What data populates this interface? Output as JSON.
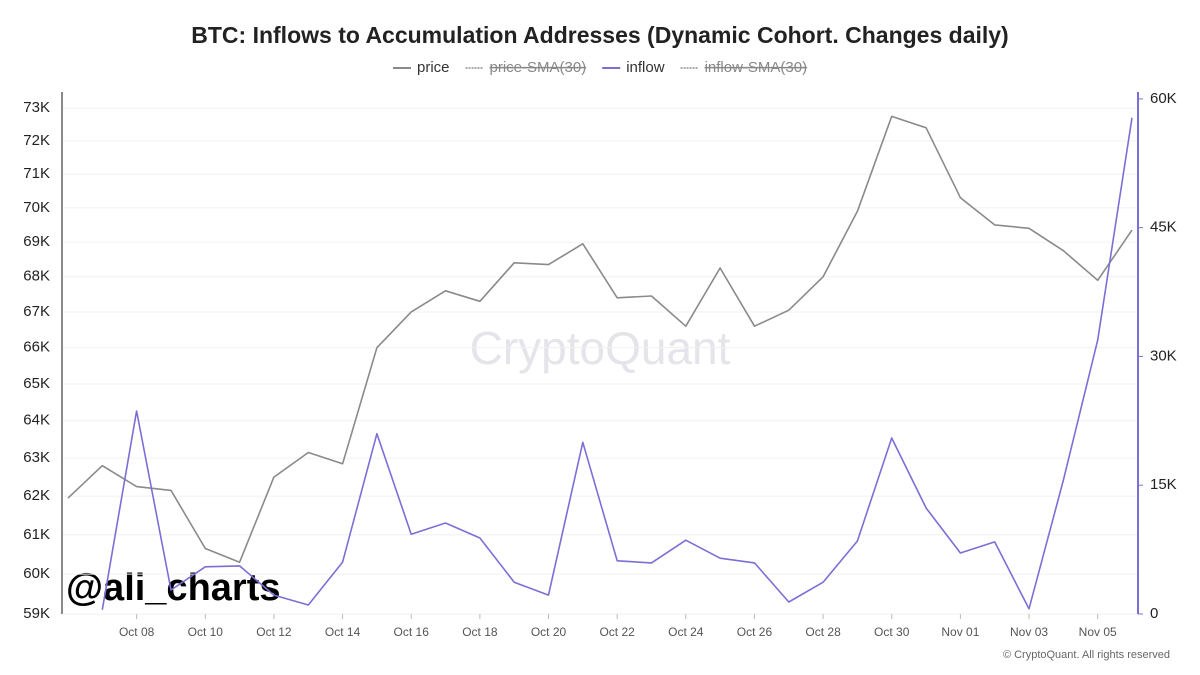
{
  "chart_data": {
    "type": "line",
    "title": "BTC: Inflows to Accumulation Addresses (Dynamic Cohort. Changes daily)",
    "watermark": "CryptoQuant",
    "handle": "@ali_charts",
    "copyright": "© CryptoQuant. All rights reserved",
    "categories": [
      null,
      null,
      "Oct 08",
      null,
      "Oct 10",
      null,
      "Oct 12",
      null,
      "Oct 14",
      null,
      "Oct 16",
      null,
      "Oct 18",
      null,
      "Oct 20",
      null,
      "Oct 22",
      null,
      "Oct 24",
      null,
      "Oct 26",
      null,
      "Oct 28",
      null,
      "Oct 30",
      null,
      "Nov 01",
      null,
      "Nov 03",
      null,
      "Nov 05",
      null
    ],
    "series": [
      {
        "name": "price",
        "color": "#8a8a8a",
        "axis": "y",
        "values": [
          61950,
          62800,
          62250,
          62150,
          60650,
          60300,
          62500,
          63150,
          62850,
          66000,
          67000,
          67600,
          67300,
          68400,
          68350,
          68950,
          67400,
          67450,
          66600,
          68250,
          66600,
          67050,
          68000,
          69900,
          72750,
          72400,
          70300,
          69500,
          69400,
          68750,
          67900,
          69350
        ]
      },
      {
        "name": "inflow",
        "color": "#7b6fd6",
        "axis": "y2",
        "values": [
          null,
          500,
          23650,
          2800,
          5500,
          5600,
          2200,
          1050,
          6050,
          21000,
          9300,
          10600,
          8850,
          3700,
          2200,
          20000,
          6200,
          5950,
          8600,
          6500,
          5950,
          1400,
          3700,
          8500,
          20500,
          12350,
          7100,
          8400,
          600,
          15600,
          31900,
          57800
        ]
      }
    ],
    "hidden_series": [
      {
        "name": "price-SMA(30)"
      },
      {
        "name": "inflow-SMA(30)"
      }
    ],
    "ylog": true,
    "ylim": [
      59000,
      73500
    ],
    "yticks": [
      {
        "value": 59000,
        "label": "59K"
      },
      {
        "value": 60000,
        "label": "60K"
      },
      {
        "value": 61000,
        "label": "61K"
      },
      {
        "value": 62000,
        "label": "62K"
      },
      {
        "value": 63000,
        "label": "63K"
      },
      {
        "value": 64000,
        "label": "64K"
      },
      {
        "value": 65000,
        "label": "65K"
      },
      {
        "value": 66000,
        "label": "66K"
      },
      {
        "value": 67000,
        "label": "67K"
      },
      {
        "value": 68000,
        "label": "68K"
      },
      {
        "value": 69000,
        "label": "69K"
      },
      {
        "value": 70000,
        "label": "70K"
      },
      {
        "value": 71000,
        "label": "71K"
      },
      {
        "value": 72000,
        "label": "72K"
      },
      {
        "value": 73000,
        "label": "73K"
      }
    ],
    "y2lim": [
      0,
      60800
    ],
    "y2ticks": [
      0,
      {
        "value": 15000,
        "label": "15K"
      },
      {
        "value": 30000,
        "label": "30K"
      },
      {
        "value": 45000,
        "label": "45K"
      },
      {
        "value": 60000,
        "label": "60K"
      }
    ],
    "grid": true
  }
}
